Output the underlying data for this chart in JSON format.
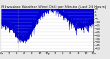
{
  "title": "Milwaukee Weather Wind Chill per Minute (Last 24 Hours)",
  "line_color": "#0000cc",
  "fill_color": "#0000dd",
  "background_color": "#e8e8e8",
  "plot_bg_color": "#ffffff",
  "grid_color": "#bbbbbb",
  "y_min": -54,
  "y_max": 10,
  "num_points": 1440,
  "title_fontsize": 3.8,
  "tick_fontsize": 2.8,
  "vline_pos": 0.18
}
